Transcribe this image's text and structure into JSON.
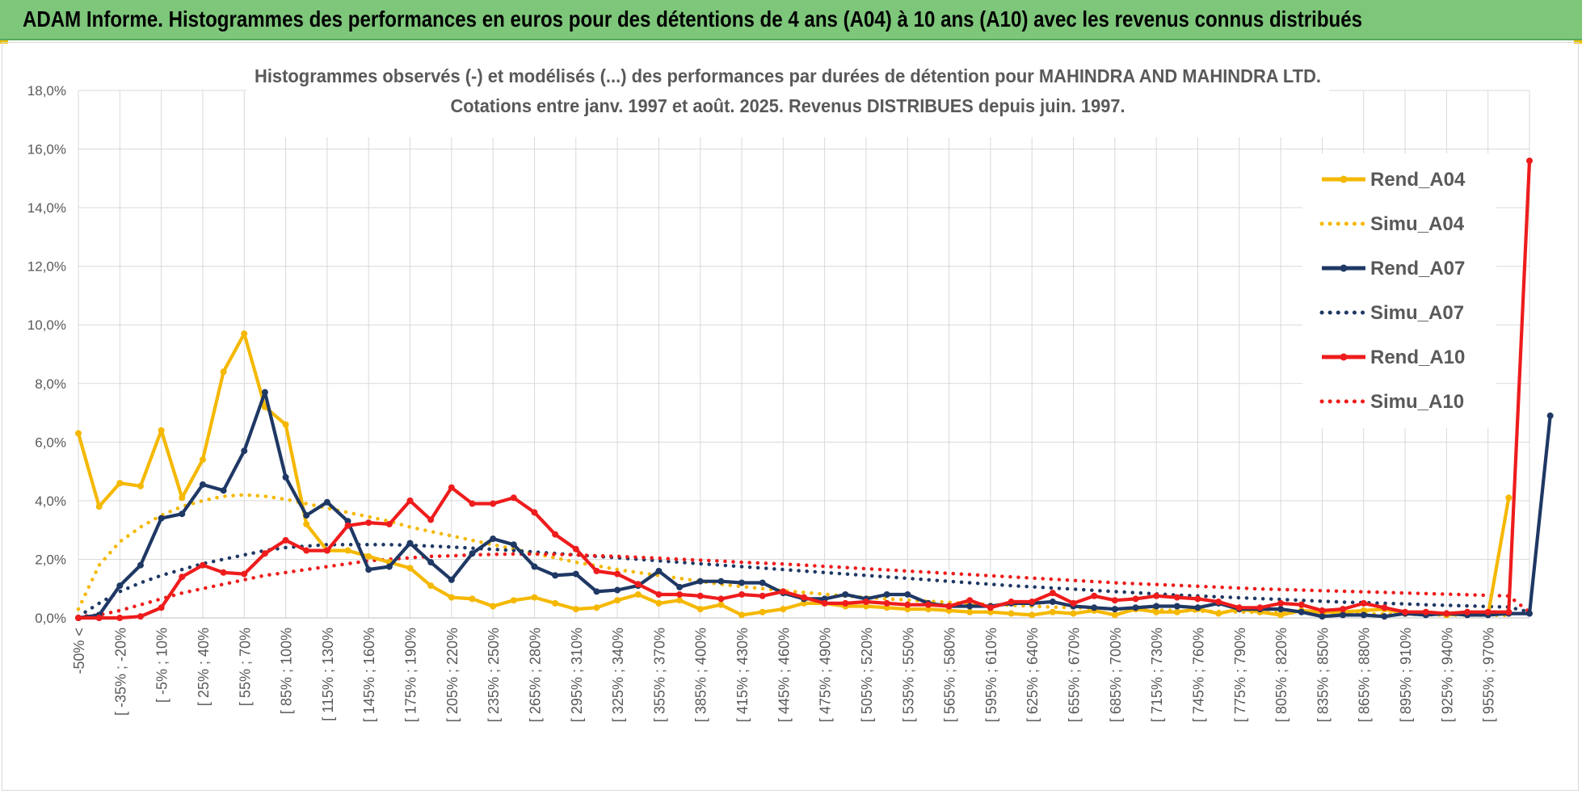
{
  "header": {
    "title": "ADAM Informe. Histogrammes des performances en euros pour des détentions de 4 ans (A04) à 10 ans (A10) avec les revenus connus distribués"
  },
  "colors": {
    "banner": "#7dc67a",
    "a04": "#f5b800",
    "a07": "#1f3864",
    "a10": "#ee1c1c",
    "grid": "#d9d9d9",
    "axis_text": "#595959"
  },
  "chart_data": {
    "type": "line",
    "title_lines": [
      "Histogrammes observés (-) et modélisés (...) des performances par durées de détention pour MAHINDRA AND MAHINDRA LTD.",
      "Cotations entre janv. 1997 et août. 2025. Revenus DISTRIBUES depuis juin. 1997."
    ],
    "ylim": [
      0,
      18
    ],
    "y_ticks": [
      "0,0%",
      "2,0%",
      "4,0%",
      "6,0%",
      "8,0%",
      "10,0%",
      "12,0%",
      "14,0%",
      "16,0%",
      "18,0%"
    ],
    "x_labels": [
      "-50% <",
      "[ -35% ; -20%",
      "[ -5% ; 10%",
      "[ 25% ; 40%",
      "[ 55% ; 70%",
      "[ 85% ; 100%",
      "[ 115% ; 130%",
      "[ 145% ; 160%",
      "[ 175% ; 190%",
      "[ 205% ; 220%",
      "[ 235% ; 250%",
      "[ 265% ; 280%",
      "[ 295% ; 310%",
      "[ 325% ; 340%",
      "[ 355% ; 370%",
      "[ 385% ; 400%",
      "[ 415% ; 430%",
      "[ 445% ; 460%",
      "[ 475% ; 490%",
      "[ 505% ; 520%",
      "[ 535% ; 550%",
      "[ 565% ; 580%",
      "[ 595% ; 610%",
      "[ 625% ; 640%",
      "[ 655% ; 670%",
      "[ 685% ; 700%",
      "[ 715% ; 730%",
      "[ 745% ; 760%",
      "[ 775% ; 790%",
      "[ 805% ; 820%",
      "[ 835% ; 850%",
      "[ 865% ; 880%",
      "[ 895% ; 910%",
      "[ 925% ; 940%",
      "[ 955% ; 970%"
    ],
    "series": [
      {
        "name": "Rend_A04",
        "style": "solid",
        "color": "#f5b800",
        "values": [
          6.3,
          3.8,
          4.6,
          4.5,
          6.4,
          4.1,
          5.4,
          8.4,
          9.7,
          7.2,
          6.6,
          3.2,
          2.3,
          2.3,
          2.1,
          1.9,
          1.7,
          1.1,
          0.7,
          0.65,
          0.4,
          0.6,
          0.7,
          0.5,
          0.3,
          0.35,
          0.6,
          0.8,
          0.5,
          0.6,
          0.3,
          0.45,
          0.1,
          0.2,
          0.3,
          0.5,
          0.5,
          0.4,
          0.4,
          0.35,
          0.3,
          0.3,
          0.25,
          0.2,
          0.2,
          0.15,
          0.1,
          0.2,
          0.15,
          0.25,
          0.1,
          0.3,
          0.2,
          0.2,
          0.3,
          0.15,
          0.3,
          0.2,
          0.1,
          0.25,
          0.2,
          0.2,
          0.25,
          0.3,
          0.15,
          0.2,
          0.1,
          0.15,
          0.1,
          4.1
        ]
      },
      {
        "name": "Simu_A04",
        "style": "dotted",
        "color": "#f5b800",
        "values": [
          0.3,
          1.8,
          2.6,
          3.1,
          3.5,
          3.8,
          4.0,
          4.15,
          4.2,
          4.15,
          4.05,
          3.9,
          3.75,
          3.6,
          3.45,
          3.3,
          3.1,
          2.95,
          2.8,
          2.65,
          2.5,
          2.35,
          2.2,
          2.05,
          1.9,
          1.78,
          1.65,
          1.55,
          1.45,
          1.35,
          1.25,
          1.15,
          1.07,
          1.0,
          0.93,
          0.87,
          0.81,
          0.75,
          0.7,
          0.65,
          0.61,
          0.57,
          0.53,
          0.49,
          0.46,
          0.43,
          0.4,
          0.37,
          0.35,
          0.33,
          0.31,
          0.29,
          0.27,
          0.25,
          0.23,
          0.22,
          0.2,
          0.19,
          0.18,
          0.17,
          0.16,
          0.15,
          0.14,
          0.13,
          0.12,
          0.11,
          0.1,
          0.1,
          0.09,
          0.09
        ]
      },
      {
        "name": "Rend_A07",
        "style": "solid",
        "color": "#1f3864",
        "values": [
          0.0,
          0.1,
          1.1,
          1.8,
          3.4,
          3.55,
          4.55,
          4.35,
          5.7,
          7.7,
          4.8,
          3.5,
          3.95,
          3.3,
          1.65,
          1.75,
          2.55,
          1.9,
          1.3,
          2.2,
          2.7,
          2.5,
          1.75,
          1.45,
          1.5,
          0.9,
          0.95,
          1.1,
          1.6,
          1.05,
          1.25,
          1.25,
          1.2,
          1.2,
          0.85,
          0.65,
          0.65,
          0.8,
          0.65,
          0.8,
          0.8,
          0.5,
          0.4,
          0.4,
          0.4,
          0.5,
          0.5,
          0.55,
          0.4,
          0.35,
          0.3,
          0.35,
          0.4,
          0.4,
          0.35,
          0.5,
          0.3,
          0.3,
          0.3,
          0.2,
          0.05,
          0.1,
          0.1,
          0.05,
          0.15,
          0.1,
          0.15,
          0.1,
          0.1,
          0.15,
          0.15,
          6.9
        ]
      },
      {
        "name": "Simu_A07",
        "style": "dotted",
        "color": "#1f3864",
        "values": [
          0.05,
          0.5,
          0.9,
          1.2,
          1.45,
          1.65,
          1.85,
          2.0,
          2.15,
          2.3,
          2.4,
          2.45,
          2.5,
          2.5,
          2.5,
          2.5,
          2.48,
          2.45,
          2.42,
          2.38,
          2.34,
          2.3,
          2.25,
          2.2,
          2.15,
          2.1,
          2.05,
          2.0,
          1.95,
          1.9,
          1.85,
          1.8,
          1.75,
          1.7,
          1.65,
          1.6,
          1.55,
          1.5,
          1.45,
          1.4,
          1.35,
          1.3,
          1.25,
          1.2,
          1.15,
          1.1,
          1.06,
          1.02,
          0.98,
          0.94,
          0.9,
          0.86,
          0.82,
          0.78,
          0.75,
          0.72,
          0.69,
          0.66,
          0.63,
          0.6,
          0.57,
          0.54,
          0.52,
          0.5,
          0.48,
          0.45,
          0.43,
          0.41,
          0.39,
          0.37,
          0.2
        ]
      },
      {
        "name": "Rend_A10",
        "style": "solid",
        "color": "#ee1c1c",
        "values": [
          0.0,
          0.0,
          0.0,
          0.05,
          0.35,
          1.4,
          1.8,
          1.55,
          1.5,
          2.2,
          2.65,
          2.3,
          2.3,
          3.15,
          3.25,
          3.2,
          4.0,
          3.35,
          4.45,
          3.9,
          3.9,
          4.1,
          3.6,
          2.85,
          2.35,
          1.6,
          1.5,
          1.15,
          0.8,
          0.8,
          0.75,
          0.65,
          0.8,
          0.75,
          0.9,
          0.7,
          0.5,
          0.5,
          0.55,
          0.5,
          0.45,
          0.45,
          0.4,
          0.6,
          0.35,
          0.55,
          0.55,
          0.85,
          0.5,
          0.75,
          0.6,
          0.65,
          0.75,
          0.7,
          0.65,
          0.55,
          0.35,
          0.35,
          0.5,
          0.45,
          0.25,
          0.3,
          0.5,
          0.35,
          0.2,
          0.2,
          0.15,
          0.2,
          0.2,
          0.2,
          15.6
        ]
      },
      {
        "name": "Simu_A10",
        "style": "dotted",
        "color": "#ee1c1c",
        "values": [
          0.05,
          0.1,
          0.25,
          0.45,
          0.65,
          0.85,
          1.0,
          1.15,
          1.3,
          1.45,
          1.55,
          1.65,
          1.75,
          1.85,
          1.95,
          2.0,
          2.05,
          2.1,
          2.12,
          2.15,
          2.17,
          2.18,
          2.18,
          2.17,
          2.15,
          2.12,
          2.1,
          2.07,
          2.04,
          2.0,
          1.97,
          1.94,
          1.9,
          1.87,
          1.84,
          1.8,
          1.76,
          1.72,
          1.68,
          1.64,
          1.6,
          1.56,
          1.52,
          1.48,
          1.44,
          1.4,
          1.36,
          1.32,
          1.28,
          1.24,
          1.2,
          1.17,
          1.14,
          1.11,
          1.08,
          1.05,
          1.02,
          0.99,
          0.97,
          0.95,
          0.93,
          0.91,
          0.89,
          0.87,
          0.85,
          0.83,
          0.81,
          0.79,
          0.77,
          0.75,
          0.2
        ]
      }
    ],
    "legend_position": "right",
    "grid": true
  }
}
